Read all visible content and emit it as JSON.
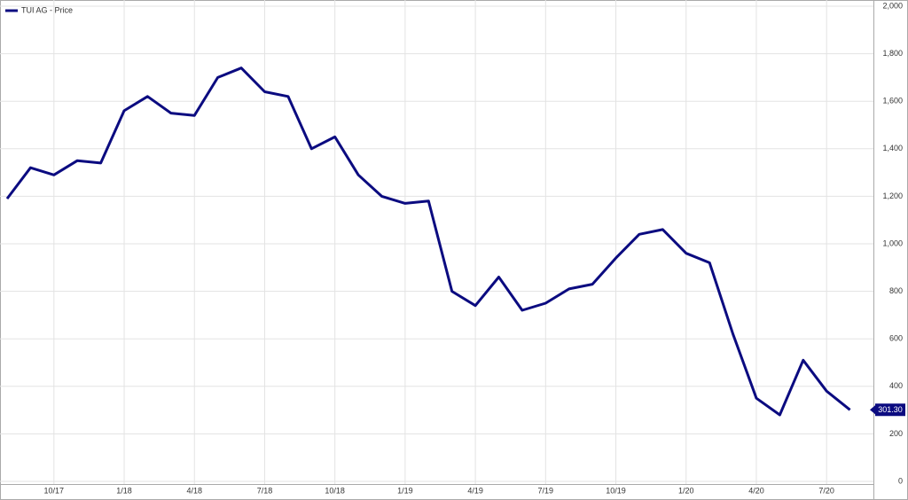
{
  "chart_data": {
    "type": "line",
    "x": [
      "2017-08",
      "2017-09",
      "2017-10",
      "2017-11",
      "2017-12",
      "2018-01",
      "2018-02",
      "2018-03",
      "2018-04",
      "2018-05",
      "2018-06",
      "2018-07",
      "2018-08",
      "2018-09",
      "2018-10",
      "2018-11",
      "2018-12",
      "2019-01",
      "2019-02",
      "2019-03",
      "2019-04",
      "2019-05",
      "2019-06",
      "2019-07",
      "2019-08",
      "2019-09",
      "2019-10",
      "2019-11",
      "2019-12",
      "2020-01",
      "2020-02",
      "2020-03",
      "2020-04",
      "2020-05",
      "2020-06",
      "2020-07",
      "2020-08"
    ],
    "series": [
      {
        "name": "TUI AG - Price",
        "color": "#0b0b80",
        "values": [
          1190,
          1320,
          1290,
          1350,
          1340,
          1560,
          1620,
          1550,
          1540,
          1700,
          1740,
          1640,
          1620,
          1400,
          1450,
          1290,
          1200,
          1170,
          1180,
          800,
          740,
          860,
          720,
          750,
          810,
          830,
          940,
          1040,
          1060,
          960,
          920,
          620,
          350,
          280,
          510,
          380,
          301.3
        ],
        "value_labels": [
          null,
          null,
          null,
          null,
          null,
          null,
          null,
          null,
          null,
          null,
          null,
          null,
          null,
          null,
          null,
          null,
          null,
          null,
          null,
          null,
          null,
          null,
          null,
          null,
          null,
          null,
          null,
          null,
          null,
          null,
          null,
          null,
          null,
          null,
          null,
          null,
          "301.30"
        ]
      }
    ],
    "xlim": [
      "2017-08",
      "2020-09"
    ],
    "xticks": [
      {
        "value": "2017-10",
        "label": "10/17"
      },
      {
        "value": "2018-01",
        "label": "1/18"
      },
      {
        "value": "2018-04",
        "label": "4/18"
      },
      {
        "value": "2018-07",
        "label": "7/18"
      },
      {
        "value": "2018-10",
        "label": "10/18"
      },
      {
        "value": "2019-01",
        "label": "1/19"
      },
      {
        "value": "2019-04",
        "label": "4/19"
      },
      {
        "value": "2019-07",
        "label": "7/19"
      },
      {
        "value": "2019-10",
        "label": "10/19"
      },
      {
        "value": "2020-01",
        "label": "1/20"
      },
      {
        "value": "2020-04",
        "label": "4/20"
      },
      {
        "value": "2020-07",
        "label": "7/20"
      }
    ],
    "ylim": [
      0,
      2000
    ],
    "yticks": [
      0,
      200,
      400,
      600,
      800,
      {
        "value": 1000,
        "label": "1,000"
      },
      {
        "value": 1200,
        "label": "1,200"
      },
      {
        "value": 1400,
        "label": "1,400"
      },
      {
        "value": 1600,
        "label": "1,600"
      },
      {
        "value": 1800,
        "label": "1,800"
      },
      {
        "value": 2000,
        "label": "2,000"
      }
    ],
    "grid": true,
    "legend": "top-left"
  }
}
